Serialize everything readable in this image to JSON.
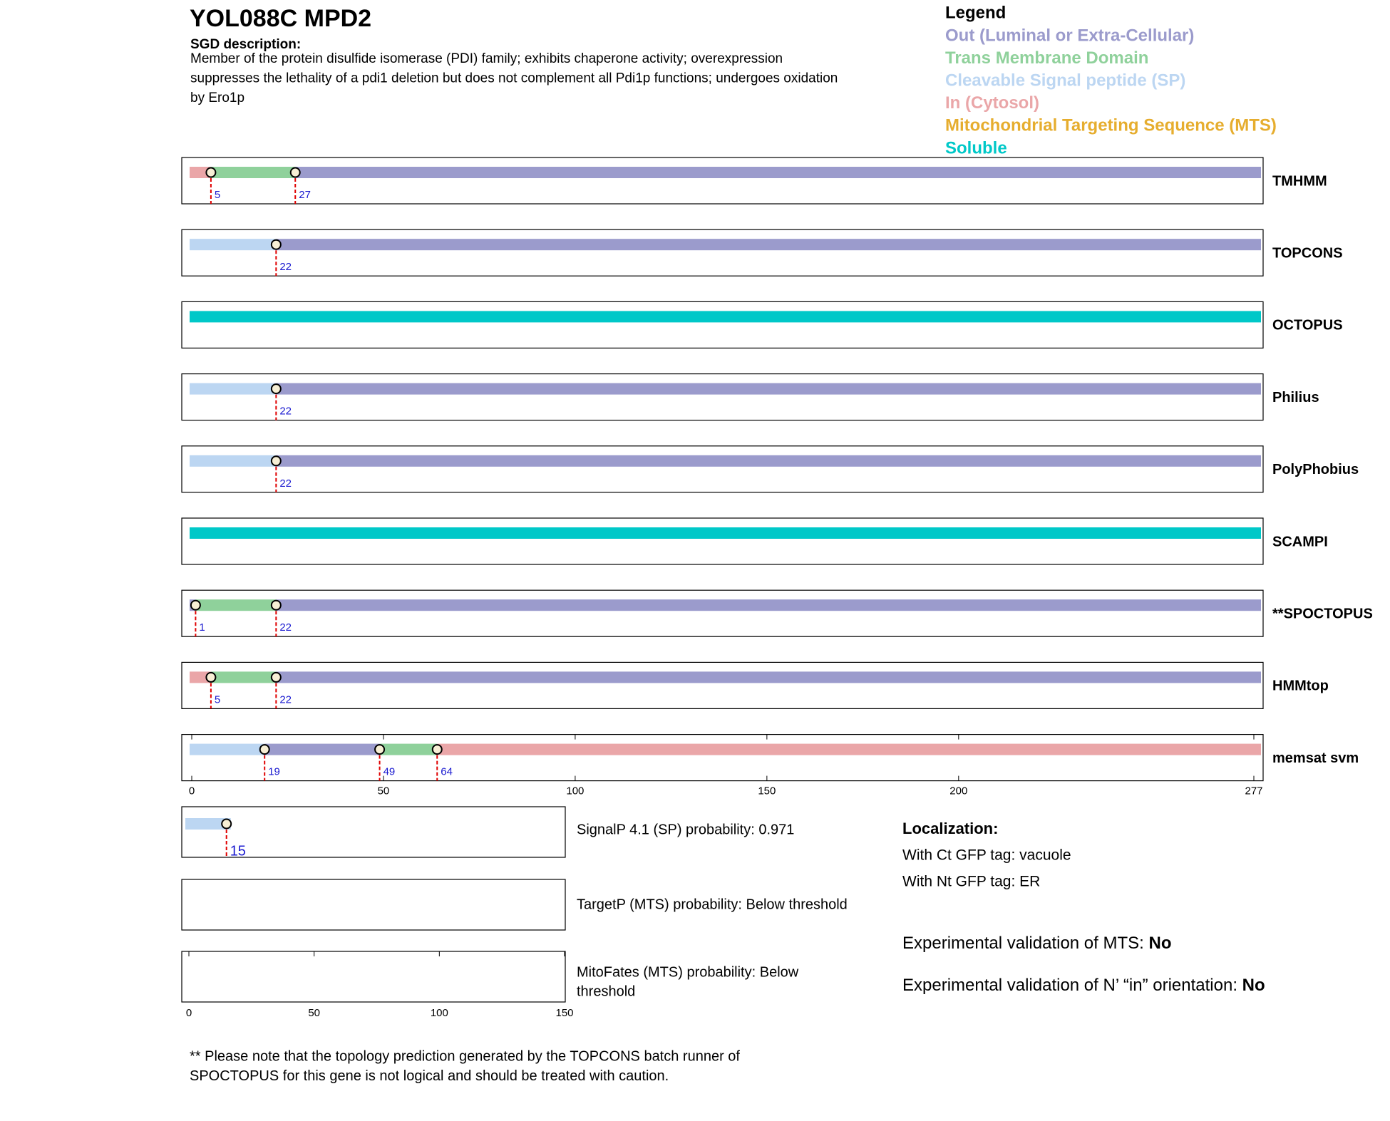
{
  "header": {
    "title": "YOL088C  MPD2",
    "description_label": "SGD description:",
    "description_lines": [
      "Member of the protein disulfide isomerase (PDI) family; exhibits chaperone activity; overexpression",
      "suppresses the lethality of a pdi1 deletion but does not complement all Pdi1p functions; undergoes oxidation",
      "by Ero1p"
    ]
  },
  "legend": {
    "title": "Legend",
    "items": [
      {
        "label": "Out (Luminal or Extra-Cellular)",
        "color": "#9b9bcc"
      },
      {
        "label": "Trans Membrane Domain",
        "color": "#8fd19b"
      },
      {
        "label": "Cleavable Signal peptide (SP)",
        "color": "#bcd6f2"
      },
      {
        "label": "In (Cytosol)",
        "color": "#eaa6a8"
      },
      {
        "label": "Mitochondrial Targeting Sequence (MTS)",
        "color": "#e6ad2e"
      },
      {
        "label": "Soluble",
        "color": "#00c8c8"
      }
    ]
  },
  "axis": {
    "xlim": [
      0,
      277
    ],
    "xticks": [
      0,
      50,
      100,
      150,
      200,
      277
    ]
  },
  "tracks": [
    {
      "name": "TMHMM",
      "cuts": [
        5,
        27
      ],
      "colors": [
        "#eaa6a8",
        "#8fd19b",
        "#9b9bcc"
      ]
    },
    {
      "name": "TOPCONS",
      "cuts": [
        22
      ],
      "colors": [
        "#bcd6f2",
        "#9b9bcc"
      ]
    },
    {
      "name": "OCTOPUS",
      "cuts": [],
      "colors": [
        "#00c8c8"
      ]
    },
    {
      "name": "Philius",
      "cuts": [
        22
      ],
      "colors": [
        "#bcd6f2",
        "#9b9bcc"
      ]
    },
    {
      "name": "PolyPhobius",
      "cuts": [
        22
      ],
      "colors": [
        "#bcd6f2",
        "#9b9bcc"
      ]
    },
    {
      "name": "SCAMPI",
      "cuts": [],
      "colors": [
        "#00c8c8"
      ]
    },
    {
      "name": "**SPOCTOPUS",
      "cuts": [
        1,
        22
      ],
      "colors": [
        "#9b9bcc",
        "#8fd19b",
        "#9b9bcc"
      ]
    },
    {
      "name": "HMMtop",
      "cuts": [
        5,
        22
      ],
      "colors": [
        "#eaa6a8",
        "#8fd19b",
        "#9b9bcc"
      ]
    },
    {
      "name": "memsat svm",
      "cuts": [
        19,
        49,
        64
      ],
      "colors": [
        "#bcd6f2",
        "#9b9bcc",
        "#8fd19b",
        "#eaa6a8"
      ]
    }
  ],
  "panels": {
    "xlim": [
      0,
      150
    ],
    "xticks": [
      0,
      50,
      100,
      150
    ],
    "signalp": {
      "lines": [
        "SignalP 4.1 (SP) probability: 0.971"
      ],
      "cuts": [
        15
      ],
      "colors": [
        "#bcd6f2"
      ]
    },
    "targetp": {
      "lines": [
        "TargetP (MTS) probability: Below threshold"
      ]
    },
    "mitofates": {
      "lines": [
        "MitoFates (MTS) probability: Below",
        "threshold"
      ]
    }
  },
  "localization": {
    "title": "Localization:",
    "ct": "With Ct GFP tag: vacuole",
    "nt": "With Nt GFP tag: ER",
    "mts_label": "Experimental validation of MTS: ",
    "mts_value": "No",
    "orient_label": "Experimental validation of N’ “in” orientation: ",
    "orient_value": "No"
  },
  "note": [
    "** Please note that the topology prediction generated by the TOPCONS batch runner of",
    "SPOCTOPUS for this gene is not logical and should be treated with caution."
  ]
}
